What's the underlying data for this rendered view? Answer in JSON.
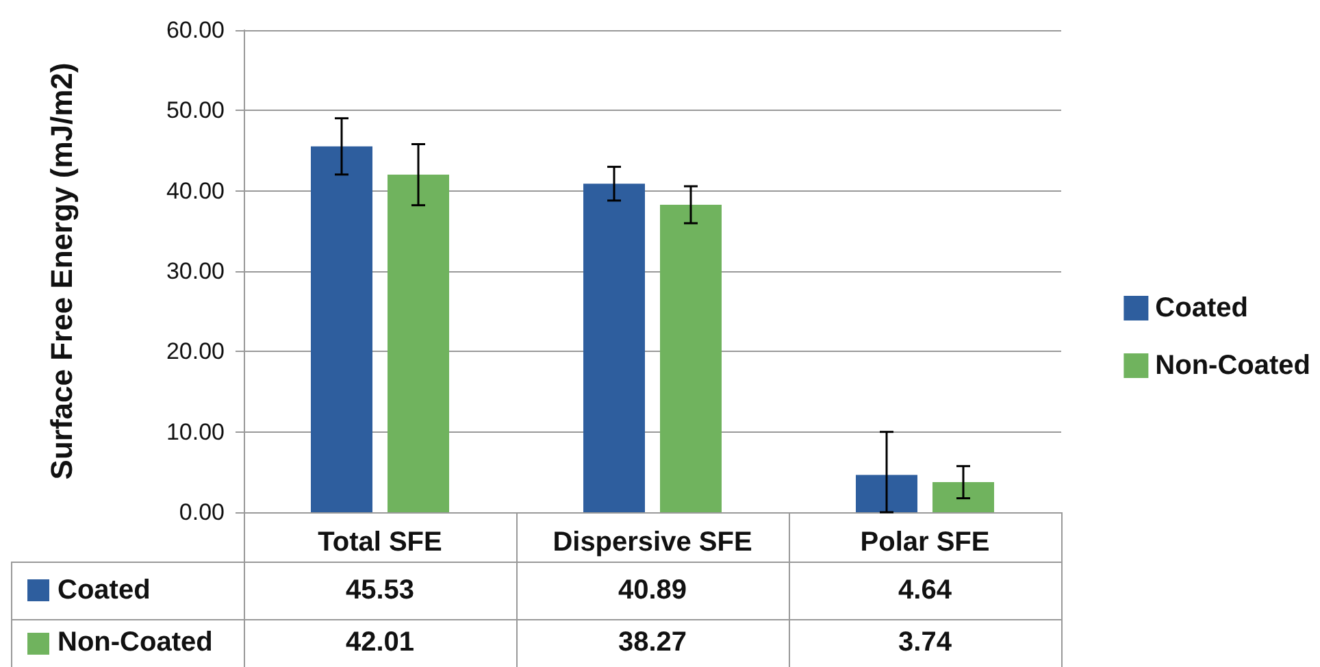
{
  "chart_data": {
    "type": "bar",
    "ylabel": "Surface Free Energy (mJ/m2)",
    "categories": [
      "Total SFE",
      "Dispersive SFE",
      "Polar SFE"
    ],
    "series": [
      {
        "name": "Coated",
        "color": "#2e5e9e",
        "values": [
          45.53,
          40.89,
          4.64
        ],
        "errors": [
          3.5,
          2.1,
          [
            0,
            10.0
          ]
        ]
      },
      {
        "name": "Non-Coated",
        "color": "#70b35e",
        "values": [
          42.01,
          38.27,
          3.74
        ],
        "errors": [
          3.8,
          2.3,
          2.0
        ]
      }
    ],
    "ylim": [
      0,
      60
    ],
    "yticks": [
      {
        "value": 0,
        "label": "0.00"
      },
      {
        "value": 10,
        "label": "10.00"
      },
      {
        "value": 20,
        "label": "20.00"
      },
      {
        "value": 30,
        "label": "30.00"
      },
      {
        "value": 40,
        "label": "40.00"
      },
      {
        "value": 50,
        "label": "50.00"
      },
      {
        "value": 60,
        "label": "60.00"
      }
    ],
    "grid": "y",
    "legend": "right",
    "data_labels": true
  }
}
